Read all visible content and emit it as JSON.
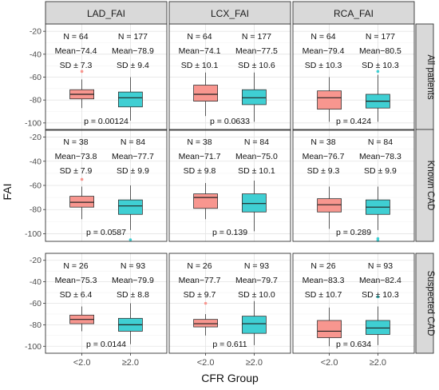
{
  "chart_data": {
    "type": "boxplot",
    "xlabel": "CFR Group",
    "ylabel": "FAI",
    "categories": [
      "<2.0",
      "≥2.0"
    ],
    "ylim": [
      -105,
      -15
    ],
    "yticks": [
      -20,
      -40,
      -60,
      -80,
      -100
    ],
    "facet_columns": [
      "LAD_FAI",
      "LCX_FAI",
      "RCA_FAI"
    ],
    "facet_rows": [
      "All patients",
      "Known CAD",
      "Suspected CAD"
    ],
    "colors": {
      "<2.0": "#f8968f",
      "≥2.0": "#3fcfd3",
      "strip": "#d9d9d9",
      "panel_border": "#333333",
      "grid": "#e3e3e3"
    },
    "grid": true,
    "legend": "none",
    "panels": [
      {
        "row": 0,
        "col": 0,
        "p": "p = 0.00124",
        "groups": [
          {
            "n": "N = 64",
            "mean": "Mean−74.4",
            "sd": "SD ± 7.3",
            "stats": {
              "whislo": -87,
              "q1": -79,
              "med": -75,
              "q3": -71,
              "whishi": -62
            },
            "outliers": [
              -55
            ]
          },
          {
            "n": "N = 177",
            "mean": "Mean−78.9",
            "sd": "SD ± 9.4",
            "stats": {
              "whislo": -98,
              "q1": -86,
              "med": -78,
              "q3": -73,
              "whishi": -60
            },
            "outliers": []
          }
        ]
      },
      {
        "row": 0,
        "col": 1,
        "p": "p = 0.0633",
        "groups": [
          {
            "n": "N = 64",
            "mean": "Mean−74.1",
            "sd": "SD ± 10.1",
            "stats": {
              "whislo": -94,
              "q1": -81,
              "med": -75,
              "q3": -67,
              "whishi": -56
            },
            "outliers": []
          },
          {
            "n": "N = 177",
            "mean": "Mean−77.5",
            "sd": "SD ± 10.6",
            "stats": {
              "whislo": -99,
              "q1": -84,
              "med": -78,
              "q3": -71,
              "whishi": -56
            },
            "outliers": []
          }
        ]
      },
      {
        "row": 0,
        "col": 2,
        "p": "p = 0.424",
        "groups": [
          {
            "n": "N = 64",
            "mean": "Mean−79.4",
            "sd": "SD ± 10.3",
            "stats": {
              "whislo": -99,
              "q1": -88,
              "med": -78,
              "q3": -72,
              "whishi": -60
            },
            "outliers": []
          },
          {
            "n": "N = 177",
            "mean": "Mean−80.5",
            "sd": "SD ± 10.3",
            "stats": {
              "whislo": -99,
              "q1": -87,
              "med": -81,
              "q3": -75,
              "whishi": -58
            },
            "outliers": [
              -55
            ]
          }
        ]
      },
      {
        "row": 1,
        "col": 0,
        "p": "p = 0.0587",
        "groups": [
          {
            "n": "N = 38",
            "mean": "Mean−73.8",
            "sd": "SD ± 7.9",
            "stats": {
              "whislo": -88,
              "q1": -78,
              "med": -74,
              "q3": -69,
              "whishi": -61
            },
            "outliers": [
              -55
            ]
          },
          {
            "n": "N = 84",
            "mean": "Mean−77.7",
            "sd": "SD ± 9.9",
            "stats": {
              "whislo": -97,
              "q1": -84,
              "med": -77,
              "q3": -72,
              "whishi": -60
            },
            "outliers": [
              -105
            ]
          }
        ]
      },
      {
        "row": 1,
        "col": 1,
        "p": "p = 0.139",
        "groups": [
          {
            "n": "N = 38",
            "mean": "Mean−71.7",
            "sd": "SD ± 9.8",
            "stats": {
              "whislo": -88,
              "q1": -79,
              "med": -70,
              "q3": -67,
              "whishi": -58
            },
            "outliers": []
          },
          {
            "n": "N = 84",
            "mean": "Mean−75.0",
            "sd": "SD ± 10.1",
            "stats": {
              "whislo": -98,
              "q1": -82,
              "med": -75,
              "q3": -67,
              "whishi": -56
            },
            "outliers": []
          }
        ]
      },
      {
        "row": 1,
        "col": 2,
        "p": "p = 0.289",
        "groups": [
          {
            "n": "N = 38",
            "mean": "Mean−76.7",
            "sd": "SD ± 9.3",
            "stats": {
              "whislo": -96,
              "q1": -82,
              "med": -76,
              "q3": -71,
              "whishi": -61
            },
            "outliers": []
          },
          {
            "n": "N = 84",
            "mean": "Mean−78.3",
            "sd": "SD ± 9.9",
            "stats": {
              "whislo": -97,
              "q1": -84,
              "med": -78,
              "q3": -72,
              "whishi": -61
            },
            "outliers": [
              -104,
              -106
            ]
          }
        ]
      },
      {
        "row": 2,
        "col": 0,
        "p": "p = 0.0144",
        "groups": [
          {
            "n": "N = 26",
            "mean": "Mean−75.3",
            "sd": "SD ± 6.4",
            "stats": {
              "whislo": -86,
              "q1": -79,
              "med": -75,
              "q3": -71,
              "whishi": -63
            },
            "outliers": []
          },
          {
            "n": "N = 93",
            "mean": "Mean−79.9",
            "sd": "SD ± 8.8",
            "stats": {
              "whislo": -98,
              "q1": -86,
              "med": -80,
              "q3": -74,
              "whishi": -60
            },
            "outliers": []
          }
        ]
      },
      {
        "row": 2,
        "col": 1,
        "p": "p = 0.611",
        "groups": [
          {
            "n": "N = 26",
            "mean": "Mean−77.7",
            "sd": "SD ± 9.7",
            "stats": {
              "whislo": -90,
              "q1": -82,
              "med": -79,
              "q3": -75,
              "whishi": -70
            },
            "outliers": [
              -60
            ]
          },
          {
            "n": "N = 93",
            "mean": "Mean−79.7",
            "sd": "SD ± 10.0",
            "stats": {
              "whislo": -99,
              "q1": -88,
              "med": -79,
              "q3": -72,
              "whishi": -58
            },
            "outliers": []
          }
        ]
      },
      {
        "row": 2,
        "col": 2,
        "p": "p = 0.634",
        "groups": [
          {
            "n": "N = 26",
            "mean": "Mean−83.3",
            "sd": "SD ± 10.7",
            "stats": {
              "whislo": -100,
              "q1": -92,
              "med": -86,
              "q3": -76,
              "whishi": -64
            },
            "outliers": []
          },
          {
            "n": "N = 93",
            "mean": "Mean−82.4",
            "sd": "SD ± 10.3",
            "stats": {
              "whislo": -99,
              "q1": -89,
              "med": -83,
              "q3": -76,
              "whishi": -63
            },
            "outliers": [
              -54
            ]
          }
        ]
      }
    ]
  }
}
